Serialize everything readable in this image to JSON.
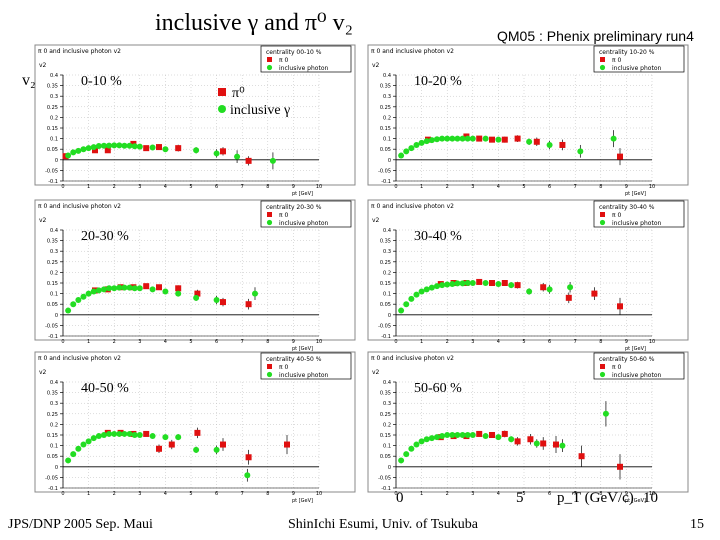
{
  "slide": {
    "title": "inclusive γ and π⁰ v₂",
    "subtitle": "QM05 : Phenix preliminary run4",
    "y_label": "v₂",
    "x_label": "p_T (GeV/c)",
    "x_ticks_big": [
      "0",
      "5",
      "10"
    ],
    "footer_left": "JPS/DNP 2005 Sep. Maui",
    "footer_center": "ShinIchi Esumi, Univ. of Tsukuba",
    "page_number": "15"
  },
  "legend": {
    "pi0": "π⁰",
    "gamma": "inclusive γ",
    "pi0_small": "π 0",
    "gamma_small": "inclusive photon"
  },
  "colors": {
    "pi0": "#e01010",
    "gamma": "#22dd22",
    "axis": "#000000",
    "frame": "#888888"
  },
  "chart_data": [
    {
      "type": "scatter",
      "panel_header": "π 0 and inclusive photon v2",
      "centrality": "centrality 00-10 %",
      "label": "0-10 %",
      "xlabel": "pt [GeV]",
      "ylabel": "v2",
      "xlim": [
        0,
        10
      ],
      "ylim": [
        -0.1,
        0.4
      ],
      "x_ticks": [
        "0",
        "1",
        "2",
        "3",
        "4",
        "5",
        "6",
        "7",
        "8",
        "9",
        "10"
      ],
      "y_ticks": [
        "-0.1",
        "-0.05",
        "0",
        "0.05",
        "0.1",
        "0.15",
        "0.2",
        "0.25",
        "0.3",
        "0.35",
        "0.4"
      ],
      "series": [
        {
          "name": "π0",
          "x": [
            0.1,
            1.25,
            1.75,
            2.75,
            3.25,
            3.75,
            4.5,
            6.25,
            7.25
          ],
          "y": [
            0.017,
            0.045,
            0.045,
            0.075,
            0.055,
            0.06,
            0.055,
            0.04,
            -0.005
          ],
          "err": [
            0.005,
            0.005,
            0.008,
            0.01,
            0.012,
            0.014,
            0.016,
            0.02,
            0.022
          ]
        },
        {
          "name": "inclusive photon",
          "x": [
            0.2,
            0.4,
            0.6,
            0.8,
            1.0,
            1.2,
            1.4,
            1.6,
            1.8,
            2.0,
            2.2,
            2.4,
            2.6,
            2.8,
            3.0,
            3.5,
            4.0,
            5.2,
            6.0,
            6.8,
            8.2
          ],
          "y": [
            0.02,
            0.035,
            0.042,
            0.05,
            0.055,
            0.06,
            0.065,
            0.066,
            0.067,
            0.068,
            0.068,
            0.066,
            0.066,
            0.064,
            0.062,
            0.058,
            0.05,
            0.045,
            0.03,
            0.015,
            -0.005
          ],
          "err": [
            0.003,
            0.003,
            0.003,
            0.003,
            0.003,
            0.003,
            0.004,
            0.004,
            0.004,
            0.004,
            0.005,
            0.005,
            0.006,
            0.006,
            0.007,
            0.01,
            0.012,
            0.015,
            0.02,
            0.03,
            0.04
          ]
        }
      ]
    },
    {
      "type": "scatter",
      "panel_header": "π 0 and inclusive photon v2",
      "centrality": "centrality 10-20 %",
      "label": "10-20 %",
      "xlabel": "pt [GeV]",
      "ylabel": "v2",
      "xlim": [
        0,
        10
      ],
      "ylim": [
        -0.1,
        0.4
      ],
      "x_ticks": [
        "0",
        "1",
        "2",
        "3",
        "4",
        "5",
        "6",
        "7",
        "8",
        "9",
        "10"
      ],
      "y_ticks": [
        "-0.1",
        "-0.05",
        "0",
        "0.05",
        "0.1",
        "0.15",
        "0.2",
        "0.25",
        "0.3",
        "0.35",
        "0.4"
      ],
      "series": [
        {
          "name": "π0",
          "x": [
            1.25,
            2.75,
            3.25,
            3.75,
            4.25,
            4.75,
            5.5,
            6.5,
            8.75
          ],
          "y": [
            0.095,
            0.11,
            0.1,
            0.095,
            0.095,
            0.1,
            0.085,
            0.07,
            0.015
          ],
          "err": [
            0.006,
            0.008,
            0.01,
            0.012,
            0.014,
            0.016,
            0.02,
            0.025,
            0.04
          ]
        },
        {
          "name": "inclusive photon",
          "x": [
            0.2,
            0.4,
            0.6,
            0.8,
            1.0,
            1.2,
            1.4,
            1.6,
            1.8,
            2.0,
            2.2,
            2.4,
            2.6,
            2.8,
            3.0,
            3.5,
            4.0,
            5.2,
            6.0,
            7.2,
            8.5
          ],
          "y": [
            0.02,
            0.04,
            0.055,
            0.07,
            0.08,
            0.088,
            0.093,
            0.097,
            0.1,
            0.1,
            0.1,
            0.1,
            0.1,
            0.1,
            0.1,
            0.1,
            0.095,
            0.085,
            0.07,
            0.04,
            0.1
          ],
          "err": [
            0.003,
            0.003,
            0.003,
            0.003,
            0.003,
            0.003,
            0.004,
            0.004,
            0.004,
            0.004,
            0.005,
            0.005,
            0.006,
            0.006,
            0.007,
            0.01,
            0.012,
            0.015,
            0.02,
            0.03,
            0.04
          ]
        }
      ]
    },
    {
      "type": "scatter",
      "panel_header": "π 0 and inclusive photon v2",
      "centrality": "centrality 20-30 %",
      "label": "20-30 %",
      "xlabel": "pt [GeV]",
      "ylabel": "v2",
      "xlim": [
        0,
        10
      ],
      "ylim": [
        -0.1,
        0.4
      ],
      "x_ticks": [
        "0",
        "1",
        "2",
        "3",
        "4",
        "5",
        "6",
        "7",
        "8",
        "9",
        "10"
      ],
      "y_ticks": [
        "-0.1",
        "-0.05",
        "0",
        "0.05",
        "0.1",
        "0.15",
        "0.2",
        "0.25",
        "0.3",
        "0.35",
        "0.4"
      ],
      "series": [
        {
          "name": "π0",
          "x": [
            1.25,
            1.75,
            2.25,
            2.75,
            3.25,
            3.75,
            4.5,
            5.25,
            6.25,
            7.25
          ],
          "y": [
            0.115,
            0.12,
            0.13,
            0.13,
            0.135,
            0.13,
            0.125,
            0.1,
            0.06,
            0.05
          ],
          "err": [
            0.006,
            0.007,
            0.008,
            0.009,
            0.01,
            0.012,
            0.014,
            0.018,
            0.02,
            0.025
          ]
        },
        {
          "name": "inclusive photon",
          "x": [
            0.2,
            0.4,
            0.6,
            0.8,
            1.0,
            1.2,
            1.4,
            1.6,
            1.8,
            2.0,
            2.2,
            2.4,
            2.6,
            2.8,
            3.0,
            3.5,
            4.0,
            4.5,
            5.2,
            6.0,
            7.5
          ],
          "y": [
            0.02,
            0.05,
            0.07,
            0.085,
            0.1,
            0.11,
            0.115,
            0.12,
            0.125,
            0.125,
            0.128,
            0.128,
            0.128,
            0.125,
            0.125,
            0.12,
            0.11,
            0.1,
            0.08,
            0.07,
            0.1
          ],
          "err": [
            0.003,
            0.003,
            0.003,
            0.003,
            0.003,
            0.003,
            0.004,
            0.004,
            0.004,
            0.004,
            0.005,
            0.005,
            0.006,
            0.006,
            0.007,
            0.01,
            0.012,
            0.014,
            0.015,
            0.02,
            0.03
          ]
        }
      ]
    },
    {
      "type": "scatter",
      "panel_header": "π 0 and inclusive photon v2",
      "centrality": "centrality 30-40 %",
      "label": "30-40 %",
      "xlabel": "pt [GeV]",
      "ylabel": "v2",
      "xlim": [
        0,
        10
      ],
      "ylim": [
        -0.1,
        0.4
      ],
      "x_ticks": [
        "0",
        "1",
        "2",
        "3",
        "4",
        "5",
        "6",
        "7",
        "8",
        "9",
        "10"
      ],
      "y_ticks": [
        "-0.1",
        "-0.05",
        "0",
        "0.05",
        "0.1",
        "0.15",
        "0.2",
        "0.25",
        "0.3",
        "0.35",
        "0.4"
      ],
      "series": [
        {
          "name": "π0",
          "x": [
            1.75,
            2.25,
            2.75,
            3.25,
            3.75,
            4.25,
            4.75,
            5.75,
            6.75,
            7.75,
            8.75
          ],
          "y": [
            0.145,
            0.15,
            0.15,
            0.155,
            0.15,
            0.15,
            0.14,
            0.13,
            0.08,
            0.1,
            0.04
          ],
          "err": [
            0.007,
            0.008,
            0.009,
            0.01,
            0.012,
            0.014,
            0.016,
            0.02,
            0.025,
            0.03,
            0.04
          ]
        },
        {
          "name": "inclusive photon",
          "x": [
            0.2,
            0.4,
            0.6,
            0.8,
            1.0,
            1.2,
            1.4,
            1.6,
            1.8,
            2.0,
            2.2,
            2.4,
            2.6,
            2.8,
            3.0,
            3.5,
            4.0,
            4.5,
            5.2,
            6.0,
            6.8
          ],
          "y": [
            0.02,
            0.05,
            0.075,
            0.095,
            0.11,
            0.12,
            0.128,
            0.135,
            0.14,
            0.143,
            0.145,
            0.148,
            0.148,
            0.15,
            0.15,
            0.15,
            0.145,
            0.14,
            0.11,
            0.12,
            0.13
          ],
          "err": [
            0.003,
            0.003,
            0.003,
            0.003,
            0.003,
            0.003,
            0.004,
            0.004,
            0.004,
            0.004,
            0.005,
            0.005,
            0.006,
            0.006,
            0.007,
            0.01,
            0.012,
            0.014,
            0.015,
            0.02,
            0.025
          ]
        }
      ]
    },
    {
      "type": "scatter",
      "panel_header": "π 0 and inclusive photon v2",
      "centrality": "centrality 40-50 %",
      "label": "40-50 %",
      "xlabel": "pt [GeV]",
      "ylabel": "v2",
      "xlim": [
        0,
        10
      ],
      "ylim": [
        -0.1,
        0.4
      ],
      "x_ticks": [
        "0",
        "1",
        "2",
        "3",
        "4",
        "5",
        "6",
        "7",
        "8",
        "9",
        "10"
      ],
      "y_ticks": [
        "-0.1",
        "-0.05",
        "0",
        "0.05",
        "0.1",
        "0.15",
        "0.2",
        "0.25",
        "0.3",
        "0.35",
        "0.4"
      ],
      "series": [
        {
          "name": "π0",
          "x": [
            1.75,
            2.25,
            2.75,
            3.25,
            3.75,
            4.25,
            5.25,
            6.25,
            7.25,
            8.75
          ],
          "y": [
            0.16,
            0.16,
            0.155,
            0.155,
            0.085,
            0.105,
            0.16,
            0.105,
            0.045,
            0.105
          ],
          "err": [
            0.008,
            0.009,
            0.01,
            0.012,
            0.02,
            0.022,
            0.025,
            0.03,
            0.035,
            0.045
          ]
        },
        {
          "name": "inclusive photon",
          "x": [
            0.2,
            0.4,
            0.6,
            0.8,
            1.0,
            1.2,
            1.4,
            1.6,
            1.8,
            2.0,
            2.2,
            2.4,
            2.6,
            2.8,
            3.0,
            3.5,
            4.0,
            4.5,
            5.2,
            6.0,
            7.2
          ],
          "y": [
            0.03,
            0.06,
            0.085,
            0.105,
            0.12,
            0.135,
            0.145,
            0.15,
            0.155,
            0.155,
            0.155,
            0.155,
            0.155,
            0.15,
            0.15,
            0.145,
            0.14,
            0.14,
            0.08,
            0.08,
            -0.04
          ],
          "err": [
            0.003,
            0.003,
            0.003,
            0.003,
            0.003,
            0.003,
            0.004,
            0.004,
            0.004,
            0.004,
            0.005,
            0.005,
            0.006,
            0.006,
            0.007,
            0.01,
            0.012,
            0.014,
            0.015,
            0.02,
            0.03
          ]
        }
      ]
    },
    {
      "type": "scatter",
      "panel_header": "π 0 and inclusive photon v2",
      "centrality": "centrality 50-60 %",
      "label": "50-60 %",
      "xlabel": "pt [GeV]",
      "ylabel": "v2",
      "xlim": [
        0,
        10
      ],
      "ylim": [
        -0.1,
        0.4
      ],
      "x_ticks": [
        "0",
        "1",
        "2",
        "3",
        "4",
        "5",
        "6",
        "7",
        "8",
        "9",
        "10"
      ],
      "y_ticks": [
        "-0.1",
        "-0.05",
        "0",
        "0.05",
        "0.1",
        "0.15",
        "0.2",
        "0.25",
        "0.3",
        "0.35",
        "0.4"
      ],
      "series": [
        {
          "name": "π0",
          "x": [
            1.75,
            2.25,
            2.75,
            3.25,
            3.75,
            4.25,
            4.75,
            5.25,
            5.75,
            6.25,
            7.25,
            8.75
          ],
          "y": [
            0.14,
            0.145,
            0.145,
            0.155,
            0.15,
            0.155,
            0.12,
            0.13,
            0.11,
            0.105,
            0.05,
            0.0
          ],
          "err": [
            0.008,
            0.009,
            0.01,
            0.012,
            0.014,
            0.016,
            0.02,
            0.025,
            0.03,
            0.04,
            0.05,
            0.06
          ]
        },
        {
          "name": "inclusive photon",
          "x": [
            0.2,
            0.4,
            0.6,
            0.8,
            1.0,
            1.2,
            1.4,
            1.6,
            1.8,
            2.0,
            2.2,
            2.4,
            2.6,
            2.8,
            3.0,
            3.5,
            4.0,
            4.5,
            5.5,
            6.5,
            8.2
          ],
          "y": [
            0.03,
            0.06,
            0.085,
            0.105,
            0.12,
            0.13,
            0.135,
            0.14,
            0.145,
            0.15,
            0.15,
            0.15,
            0.15,
            0.15,
            0.15,
            0.145,
            0.14,
            0.13,
            0.11,
            0.1,
            0.25
          ],
          "err": [
            0.003,
            0.003,
            0.003,
            0.003,
            0.003,
            0.003,
            0.004,
            0.004,
            0.004,
            0.004,
            0.005,
            0.005,
            0.006,
            0.006,
            0.007,
            0.01,
            0.012,
            0.014,
            0.02,
            0.03,
            0.06
          ]
        }
      ]
    }
  ]
}
